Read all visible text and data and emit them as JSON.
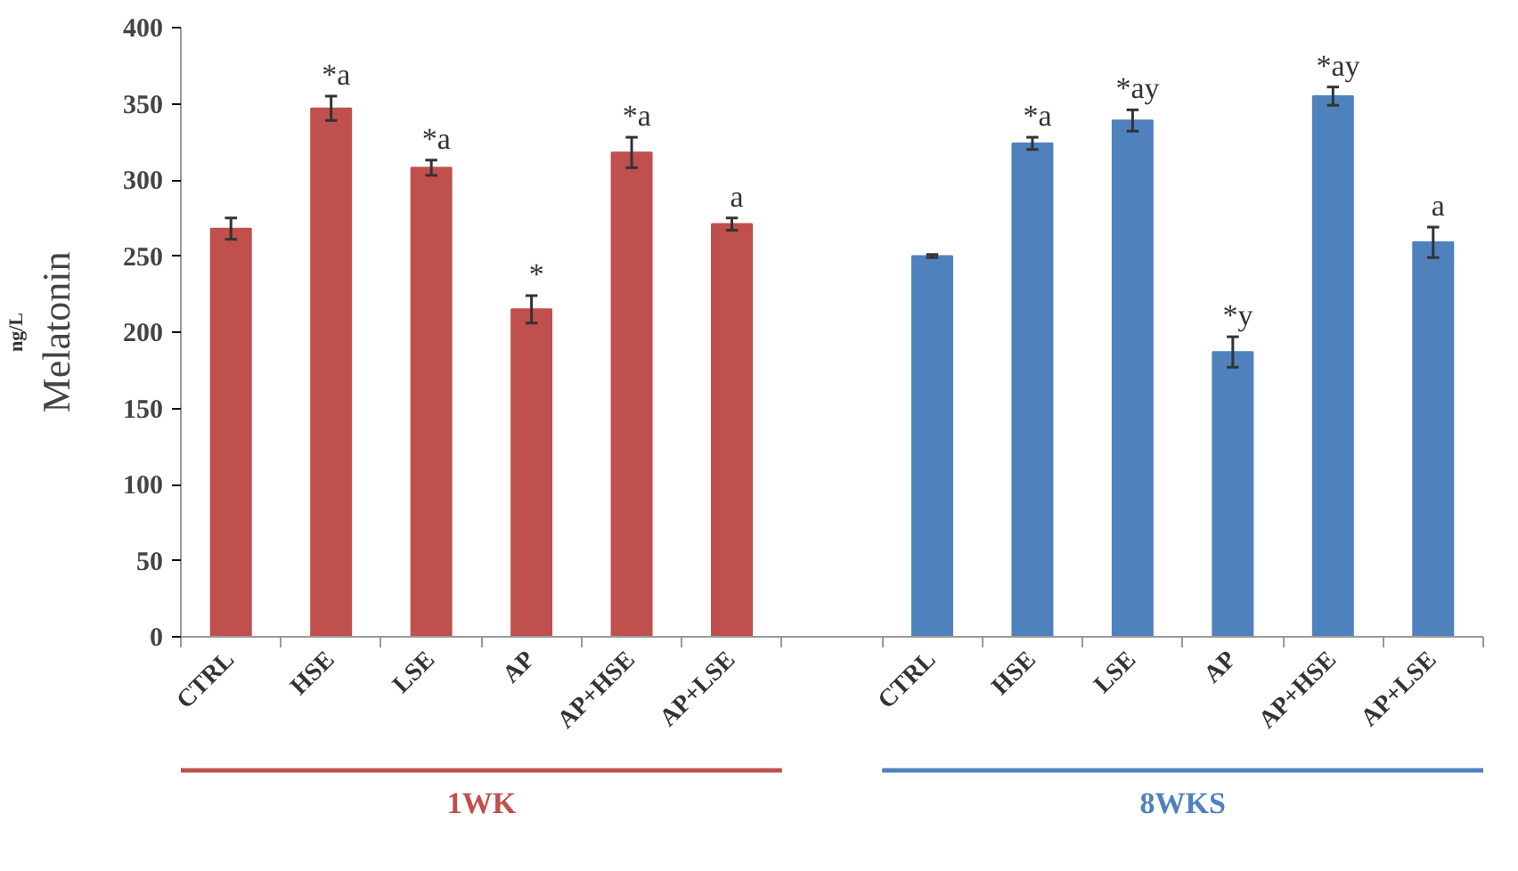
{
  "chart_data": {
    "type": "bar",
    "ylabel": "Melatonin",
    "annotations": [
      "ng/L"
    ],
    "categories": [
      "CTRL",
      "HSE",
      "LSE",
      "AP",
      "AP+HSE",
      "AP+LSE",
      null,
      "CTRL",
      "HSE",
      "LSE",
      "AP",
      "AP+HSE",
      "AP+LSE"
    ],
    "ylim": [
      0,
      400
    ],
    "yticks": [
      0,
      50,
      100,
      150,
      200,
      250,
      300,
      350,
      400
    ],
    "grid": false,
    "series": [
      {
        "name": "1WK",
        "color": "#c0504d",
        "values": [
          268,
          347,
          308,
          215,
          318,
          271,
          null,
          null,
          null,
          null,
          null,
          null,
          null
        ],
        "errors": [
          7,
          8,
          5,
          9,
          10,
          4,
          null,
          null,
          null,
          null,
          null,
          null,
          null
        ],
        "value_labels": [
          null,
          "*a",
          "*a",
          "*",
          "*a",
          "a",
          null,
          null,
          null,
          null,
          null,
          null,
          null
        ]
      },
      {
        "name": "8WKS",
        "color": "#4f81bd",
        "values": [
          null,
          null,
          null,
          null,
          null,
          null,
          null,
          250,
          324,
          339,
          187,
          355,
          259
        ],
        "errors": [
          null,
          null,
          null,
          null,
          null,
          null,
          null,
          1,
          4,
          7,
          10,
          6,
          10
        ],
        "value_labels": [
          null,
          null,
          null,
          null,
          null,
          null,
          null,
          null,
          "*a",
          "*ay",
          "*y",
          "*ay",
          "a"
        ]
      }
    ]
  }
}
